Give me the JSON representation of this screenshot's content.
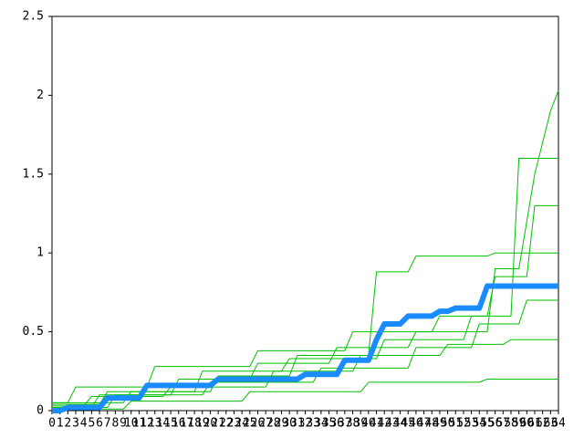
{
  "chart_data": {
    "type": "line",
    "x": [
      0,
      1,
      2,
      3,
      4,
      5,
      6,
      7,
      8,
      9,
      10,
      11,
      12,
      13,
      14,
      15,
      16,
      17,
      18,
      19,
      20,
      21,
      22,
      23,
      24,
      25,
      26,
      27,
      28,
      29,
      30,
      31,
      32,
      33,
      34,
      35,
      36,
      37,
      38,
      39,
      40,
      41,
      42,
      43,
      44,
      45,
      46,
      47,
      48,
      49,
      50,
      51,
      52,
      53,
      54,
      55,
      56,
      57,
      58,
      59,
      60,
      61,
      62,
      63,
      64
    ],
    "xlim": [
      0,
      64
    ],
    "ylim": [
      0,
      2.5
    ],
    "yticks": [
      0,
      0.5,
      1,
      1.5,
      2,
      2.5
    ],
    "series": [
      {
        "color": "#00c000",
        "width": 1,
        "values": [
          0.02,
          0.02,
          0.02,
          0.02,
          0.02,
          0.02,
          0.1,
          0.1,
          0.1,
          0.1,
          0.1,
          0.1,
          0.1,
          0.1,
          0.1,
          0.1,
          0.2,
          0.2,
          0.2,
          0.2,
          0.2,
          0.2,
          0.2,
          0.2,
          0.2,
          0.2,
          0.3,
          0.3,
          0.3,
          0.3,
          0.3,
          0.3,
          0.3,
          0.3,
          0.3,
          0.3,
          0.4,
          0.4,
          0.4,
          0.4,
          0.4,
          0.4,
          0.4,
          0.4,
          0.4,
          0.4,
          0.5,
          0.5,
          0.5,
          0.5,
          0.5,
          0.5,
          0.5,
          0.5,
          0.5,
          0.5,
          0.9,
          0.9,
          0.9,
          0.9,
          1.2,
          1.5,
          1.7,
          1.9,
          2.03
        ]
      },
      {
        "color": "#00c000",
        "width": 1,
        "values": [
          0.05,
          0.05,
          0.05,
          0.05,
          0.05,
          0.05,
          0.05,
          0.05,
          0.05,
          0.05,
          0.12,
          0.12,
          0.12,
          0.12,
          0.12,
          0.12,
          0.12,
          0.12,
          0.12,
          0.12,
          0.12,
          0.22,
          0.22,
          0.22,
          0.22,
          0.22,
          0.22,
          0.22,
          0.22,
          0.22,
          0.22,
          0.35,
          0.35,
          0.35,
          0.35,
          0.35,
          0.35,
          0.35,
          0.35,
          0.35,
          0.35,
          0.88,
          0.88,
          0.88,
          0.88,
          0.88,
          0.98,
          0.98,
          0.98,
          0.98,
          0.98,
          0.98,
          0.98,
          0.98,
          0.98,
          0.98,
          1,
          1,
          1,
          1,
          1,
          1,
          1,
          1,
          1
        ]
      },
      {
        "color": "#00c000",
        "width": 1,
        "values": [
          0.03,
          0.03,
          0.03,
          0.03,
          0.03,
          0.09,
          0.09,
          0.09,
          0.09,
          0.09,
          0.09,
          0.09,
          0.09,
          0.09,
          0.09,
          0.15,
          0.15,
          0.15,
          0.15,
          0.15,
          0.15,
          0.15,
          0.15,
          0.15,
          0.15,
          0.15,
          0.15,
          0.15,
          0.25,
          0.25,
          0.25,
          0.25,
          0.25,
          0.25,
          0.25,
          0.25,
          0.25,
          0.25,
          0.25,
          0.35,
          0.35,
          0.35,
          0.35,
          0.35,
          0.35,
          0.35,
          0.35,
          0.35,
          0.35,
          0.35,
          0.42,
          0.42,
          0.42,
          0.42,
          0.42,
          0.42,
          0.42,
          0.42,
          0.45,
          0.45,
          0.45,
          0.45,
          0.45,
          0.45,
          0.45
        ]
      },
      {
        "color": "#00c000",
        "width": 1,
        "values": [
          0.01,
          0.01,
          0.01,
          0.01,
          0.01,
          0.01,
          0.01,
          0.01,
          0.01,
          0.01,
          0.06,
          0.06,
          0.06,
          0.06,
          0.06,
          0.06,
          0.06,
          0.06,
          0.06,
          0.06,
          0.06,
          0.06,
          0.06,
          0.06,
          0.06,
          0.12,
          0.12,
          0.12,
          0.12,
          0.12,
          0.12,
          0.12,
          0.12,
          0.12,
          0.12,
          0.12,
          0.12,
          0.12,
          0.12,
          0.12,
          0.18,
          0.18,
          0.18,
          0.18,
          0.18,
          0.18,
          0.18,
          0.18,
          0.18,
          0.18,
          0.18,
          0.18,
          0.18,
          0.18,
          0.18,
          0.2,
          0.2,
          0.2,
          0.2,
          0.2,
          0.2,
          0.2,
          0.2,
          0.2,
          0.2
        ]
      },
      {
        "color": "#00c000",
        "width": 1,
        "values": [
          0.05,
          0.05,
          0.05,
          0.15,
          0.15,
          0.15,
          0.15,
          0.15,
          0.15,
          0.15,
          0.15,
          0.15,
          0.15,
          0.28,
          0.28,
          0.28,
          0.28,
          0.28,
          0.28,
          0.28,
          0.28,
          0.28,
          0.28,
          0.28,
          0.28,
          0.28,
          0.38,
          0.38,
          0.38,
          0.38,
          0.38,
          0.38,
          0.38,
          0.38,
          0.38,
          0.38,
          0.38,
          0.38,
          0.5,
          0.5,
          0.5,
          0.5,
          0.5,
          0.5,
          0.5,
          0.5,
          0.5,
          0.5,
          0.5,
          0.6,
          0.6,
          0.6,
          0.6,
          0.6,
          0.6,
          0.6,
          0.85,
          0.85,
          0.85,
          0.85,
          0.85,
          1.3,
          1.3,
          1.3,
          1.3
        ]
      },
      {
        "color": "#00c000",
        "width": 1,
        "values": [
          0.02,
          0.02,
          0.02,
          0.02,
          0.02,
          0.02,
          0.02,
          0.02,
          0.1,
          0.1,
          0.1,
          0.1,
          0.1,
          0.1,
          0.1,
          0.1,
          0.1,
          0.1,
          0.1,
          0.1,
          0.18,
          0.18,
          0.18,
          0.18,
          0.18,
          0.18,
          0.18,
          0.18,
          0.18,
          0.18,
          0.18,
          0.18,
          0.18,
          0.18,
          0.27,
          0.27,
          0.27,
          0.27,
          0.27,
          0.27,
          0.27,
          0.27,
          0.27,
          0.27,
          0.27,
          0.27,
          0.4,
          0.4,
          0.4,
          0.4,
          0.4,
          0.4,
          0.4,
          0.4,
          0.55,
          0.55,
          0.55,
          0.55,
          0.55,
          0.55,
          0.7,
          0.7,
          0.7,
          0.7,
          0.7
        ]
      },
      {
        "color": "#00c000",
        "width": 1,
        "values": [
          0.04,
          0.04,
          0.04,
          0.04,
          0.04,
          0.04,
          0.04,
          0.12,
          0.12,
          0.12,
          0.12,
          0.12,
          0.12,
          0.12,
          0.12,
          0.12,
          0.12,
          0.12,
          0.12,
          0.25,
          0.25,
          0.25,
          0.25,
          0.25,
          0.25,
          0.25,
          0.25,
          0.25,
          0.25,
          0.25,
          0.33,
          0.33,
          0.33,
          0.33,
          0.33,
          0.33,
          0.33,
          0.33,
          0.33,
          0.33,
          0.33,
          0.33,
          0.45,
          0.45,
          0.45,
          0.45,
          0.45,
          0.45,
          0.45,
          0.45,
          0.45,
          0.45,
          0.45,
          0.6,
          0.6,
          0.6,
          0.6,
          0.6,
          0.6,
          1.6,
          1.6,
          1.6,
          1.6,
          1.6,
          1.6
        ]
      },
      {
        "color": "#1a8cff",
        "width": 6,
        "values": [
          0,
          0,
          0.02,
          0.02,
          0.02,
          0.02,
          0.02,
          0.08,
          0.08,
          0.08,
          0.08,
          0.08,
          0.16,
          0.16,
          0.16,
          0.16,
          0.16,
          0.16,
          0.16,
          0.16,
          0.16,
          0.2,
          0.2,
          0.2,
          0.2,
          0.2,
          0.2,
          0.2,
          0.2,
          0.2,
          0.2,
          0.2,
          0.23,
          0.23,
          0.23,
          0.23,
          0.23,
          0.32,
          0.32,
          0.32,
          0.32,
          0.45,
          0.55,
          0.55,
          0.55,
          0.6,
          0.6,
          0.6,
          0.6,
          0.63,
          0.63,
          0.65,
          0.65,
          0.65,
          0.65,
          0.79,
          0.79,
          0.79,
          0.79,
          0.79,
          0.79,
          0.79,
          0.79,
          0.79,
          0.79
        ]
      }
    ]
  }
}
